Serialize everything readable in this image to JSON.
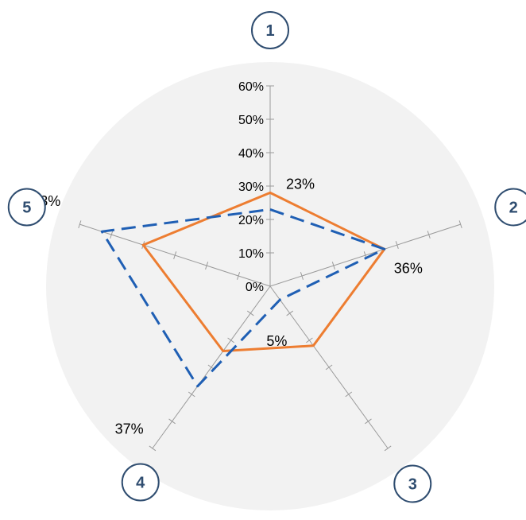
{
  "chart_data": {
    "type": "radar",
    "axes": [
      "1",
      "2",
      "3",
      "4",
      "5"
    ],
    "rlim": [
      0,
      0.6
    ],
    "tick_labels": [
      "0%",
      "10%",
      "20%",
      "30%",
      "40%",
      "50%",
      "60%"
    ],
    "grid": false,
    "legend": "none",
    "series": [
      {
        "values": [
          0.28,
          0.36,
          0.22,
          0.24,
          0.4
        ],
        "color": "#ed7d31",
        "style": "solid"
      },
      {
        "values": [
          0.23,
          0.36,
          0.05,
          0.37,
          0.53
        ],
        "color": "#1f5fb4",
        "style": "dashed"
      }
    ],
    "data_labels": [
      "23%",
      "36%",
      "5%",
      "37%",
      "53%"
    ],
    "colors": {
      "background_disc": "#f2f2f2",
      "axis": "#9a9a9a",
      "badge": "#2f4d70"
    }
  }
}
